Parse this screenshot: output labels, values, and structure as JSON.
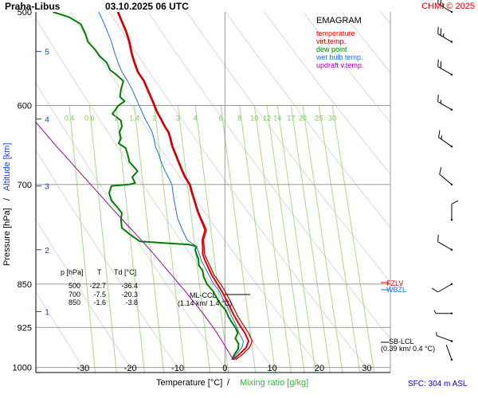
{
  "header": {
    "station": "Praha-Libus",
    "datetime": "03.10.2025 06 UTC",
    "copyright": "CHMI © 2025"
  },
  "chart_data": {
    "type": "line",
    "title": "EMAGRAM",
    "xlabel_temp": "Temperature [°C]",
    "xlabel_sep": "/",
    "xlabel_mix": "Mixing ratio [g/kg]",
    "ylabel_p": "Pressure [hPa]",
    "ylabel_sep": "/",
    "ylabel_alt": "Altitude [km]",
    "footer": "SFC: 304 m ASL",
    "xlim": [
      -40,
      35
    ],
    "ylim_hpa": [
      1010,
      500
    ],
    "pressure_ticks": [
      500,
      600,
      700,
      850,
      925,
      1000
    ],
    "temp_ticks": [
      -30,
      -20,
      -10,
      0,
      10,
      20,
      30
    ],
    "altitude_ticks": [
      {
        "label": "1",
        "p": 897
      },
      {
        "label": "2",
        "p": 795
      },
      {
        "label": "3",
        "p": 702
      },
      {
        "label": "4",
        "p": 616
      },
      {
        "label": "5",
        "p": 540
      }
    ],
    "mixing_ratio_labels": [
      "0.4",
      "0.6",
      "1",
      "1.4",
      "2",
      "3",
      "4",
      "6",
      "8",
      "10",
      "12",
      "14",
      "17",
      "20",
      "25",
      "30"
    ],
    "legend": [
      {
        "name": "temperature",
        "color": "#e60000"
      },
      {
        "name": "virt.temp.",
        "color": "#b30000"
      },
      {
        "name": "dew point",
        "color": "#008000"
      },
      {
        "name": "wet bulb temp.",
        "color": "#1f6fd6"
      },
      {
        "name": "updraft v.temp.",
        "color": "#9900aa"
      }
    ],
    "table": {
      "headers": [
        "p [hPa]",
        "T",
        "Td [°C]"
      ],
      "rows": [
        [
          "500",
          "-22.7",
          "-36.4"
        ],
        [
          "700",
          "-7.5",
          "-20.3"
        ],
        [
          "850",
          "-1.6",
          "-3.8"
        ]
      ]
    },
    "annotations": {
      "ml_ccl": "ML-CCL",
      "ml_ccl_sub": "(1.14 km/ 1.4 °C)",
      "sb_lcl": "SB-LCL",
      "sb_lcl_sub": "(0.39 km/ 0.4 °C)",
      "fzlv": "FZLV",
      "wbzl": "WBZL"
    },
    "series": [
      {
        "name": "temperature",
        "points": [
          [
            1.8,
            985
          ],
          [
            3.0,
            975
          ],
          [
            4.5,
            962
          ],
          [
            5.0,
            950
          ],
          [
            4.2,
            935
          ],
          [
            3.2,
            922
          ],
          [
            2.0,
            905
          ],
          [
            1.0,
            888
          ],
          [
            0.2,
            875
          ],
          [
            -0.8,
            860
          ],
          [
            -1.6,
            850
          ],
          [
            -2.8,
            835
          ],
          [
            -4.2,
            812
          ],
          [
            -4.7,
            802
          ],
          [
            -4.7,
            790
          ],
          [
            -4.8,
            780
          ],
          [
            -4.2,
            765
          ],
          [
            -4.8,
            755
          ],
          [
            -5.2,
            748
          ],
          [
            -5.8,
            738
          ],
          [
            -6.3,
            727
          ],
          [
            -7.0,
            712
          ],
          [
            -7.5,
            700
          ],
          [
            -8.5,
            690
          ],
          [
            -9.2,
            680
          ],
          [
            -10.0,
            668
          ],
          [
            -10.5,
            660
          ],
          [
            -11.2,
            650
          ],
          [
            -11.6,
            640
          ],
          [
            -12.0,
            632
          ],
          [
            -12.8,
            625
          ],
          [
            -13.5,
            617
          ],
          [
            -14.5,
            607
          ],
          [
            -15.2,
            597
          ],
          [
            -16.4,
            582
          ],
          [
            -17.2,
            572
          ],
          [
            -18.5,
            562
          ],
          [
            -19.2,
            552
          ],
          [
            -19.8,
            542
          ],
          [
            -20.3,
            530
          ],
          [
            -21.0,
            519
          ],
          [
            -22.0,
            508
          ],
          [
            -22.7,
            500
          ]
        ]
      },
      {
        "name": "virt.temp.",
        "points": [
          [
            2.3,
            985
          ],
          [
            3.7,
            975
          ],
          [
            5.2,
            962
          ],
          [
            5.8,
            950
          ],
          [
            5.0,
            935
          ],
          [
            4.0,
            922
          ],
          [
            2.7,
            905
          ],
          [
            1.7,
            888
          ],
          [
            0.9,
            875
          ],
          [
            -0.1,
            860
          ],
          [
            -0.9,
            850
          ],
          [
            -2.3,
            835
          ],
          [
            -3.7,
            812
          ],
          [
            -4.3,
            802
          ],
          [
            -4.4,
            790
          ],
          [
            -4.5,
            780
          ],
          [
            -3.9,
            765
          ],
          [
            -4.5,
            755
          ],
          [
            -5.0,
            748
          ],
          [
            -5.6,
            738
          ],
          [
            -6.1,
            727
          ],
          [
            -6.8,
            712
          ],
          [
            -7.3,
            700
          ],
          [
            -8.3,
            690
          ],
          [
            -9.0,
            680
          ],
          [
            -9.8,
            668
          ],
          [
            -10.3,
            660
          ],
          [
            -11.0,
            650
          ],
          [
            -11.4,
            640
          ],
          [
            -11.8,
            632
          ],
          [
            -12.6,
            625
          ],
          [
            -13.3,
            617
          ],
          [
            -14.3,
            607
          ],
          [
            -15.0,
            597
          ],
          [
            -16.2,
            582
          ],
          [
            -17.0,
            572
          ],
          [
            -18.3,
            562
          ],
          [
            -19.0,
            552
          ],
          [
            -19.6,
            542
          ],
          [
            -20.1,
            530
          ],
          [
            -20.8,
            519
          ],
          [
            -21.8,
            508
          ],
          [
            -22.5,
            500
          ]
        ]
      },
      {
        "name": "dew point",
        "points": [
          [
            1.5,
            985
          ],
          [
            2.0,
            975
          ],
          [
            2.8,
            965
          ],
          [
            2.9,
            955
          ],
          [
            2.2,
            945
          ],
          [
            2.7,
            935
          ],
          [
            2.2,
            925
          ],
          [
            1.4,
            915
          ],
          [
            0.7,
            905
          ],
          [
            0.2,
            895
          ],
          [
            -0.8,
            885
          ],
          [
            -1.6,
            875
          ],
          [
            -2.5,
            862
          ],
          [
            -3.8,
            850
          ],
          [
            -4.5,
            838
          ],
          [
            -4.7,
            828
          ],
          [
            -5.5,
            820
          ],
          [
            -5.6,
            810
          ],
          [
            -6.0,
            802
          ],
          [
            -6.3,
            795
          ],
          [
            -6.0,
            790
          ],
          [
            -7.5,
            787
          ],
          [
            -12.0,
            785
          ],
          [
            -16.0,
            783
          ],
          [
            -18.0,
            782
          ],
          [
            -20.0,
            772
          ],
          [
            -21.8,
            762
          ],
          [
            -22.0,
            750
          ],
          [
            -21.8,
            740
          ],
          [
            -23.0,
            730
          ],
          [
            -24.0,
            722
          ],
          [
            -24.5,
            712
          ],
          [
            -24.0,
            702
          ],
          [
            -20.3,
            700
          ],
          [
            -19.0,
            698
          ],
          [
            -19.6,
            690
          ],
          [
            -18.5,
            682
          ],
          [
            -19.3,
            676
          ],
          [
            -20.2,
            670
          ],
          [
            -20.5,
            662
          ],
          [
            -21.0,
            652
          ],
          [
            -22.5,
            646
          ],
          [
            -22.0,
            640
          ],
          [
            -22.3,
            632
          ],
          [
            -21.8,
            625
          ],
          [
            -22.0,
            618
          ],
          [
            -23.8,
            610
          ],
          [
            -22.5,
            600
          ],
          [
            -21.2,
            595
          ],
          [
            -22.2,
            590
          ],
          [
            -22.0,
            582
          ],
          [
            -21.5,
            572
          ],
          [
            -23.0,
            565
          ],
          [
            -24.3,
            560
          ],
          [
            -25.0,
            552
          ],
          [
            -26.5,
            545
          ],
          [
            -27.5,
            538
          ],
          [
            -29.0,
            530
          ],
          [
            -29.5,
            522
          ],
          [
            -30.5,
            512
          ],
          [
            -33.0,
            505
          ],
          [
            -36.4,
            500
          ]
        ]
      },
      {
        "name": "wet bulb temp.",
        "points": [
          [
            1.6,
            985
          ],
          [
            2.4,
            975
          ],
          [
            3.6,
            962
          ],
          [
            3.9,
            950
          ],
          [
            3.0,
            935
          ],
          [
            2.4,
            922
          ],
          [
            1.4,
            905
          ],
          [
            0.5,
            888
          ],
          [
            -0.4,
            875
          ],
          [
            -1.3,
            860
          ],
          [
            -2.4,
            850
          ],
          [
            -3.4,
            835
          ],
          [
            -5.0,
            812
          ],
          [
            -5.4,
            802
          ],
          [
            -6.0,
            790
          ],
          [
            -8.0,
            780
          ],
          [
            -9.0,
            765
          ],
          [
            -9.6,
            755
          ],
          [
            -10.0,
            748
          ],
          [
            -10.3,
            738
          ],
          [
            -10.6,
            727
          ],
          [
            -11.0,
            712
          ],
          [
            -11.2,
            700
          ],
          [
            -12.0,
            690
          ],
          [
            -12.8,
            680
          ],
          [
            -13.6,
            668
          ],
          [
            -14.0,
            660
          ],
          [
            -14.7,
            650
          ],
          [
            -15.0,
            640
          ],
          [
            -15.4,
            632
          ],
          [
            -16.0,
            625
          ],
          [
            -16.8,
            617
          ],
          [
            -17.6,
            607
          ],
          [
            -18.4,
            597
          ],
          [
            -19.6,
            582
          ],
          [
            -20.6,
            572
          ],
          [
            -21.8,
            562
          ],
          [
            -22.6,
            552
          ],
          [
            -23.3,
            542
          ],
          [
            -24.0,
            530
          ],
          [
            -24.9,
            519
          ],
          [
            -25.9,
            508
          ],
          [
            -26.7,
            500
          ]
        ]
      },
      {
        "name": "updraft v.temp.",
        "points": [
          [
            1.8,
            985
          ],
          [
            0.4,
            965
          ],
          [
            -0.6,
            950
          ],
          [
            -1.7,
            935
          ],
          [
            -2.9,
            920
          ],
          [
            -4.2,
            905
          ],
          [
            -5.6,
            890
          ],
          [
            -7.1,
            875
          ],
          [
            -8.6,
            860
          ],
          [
            -9.7,
            850
          ],
          [
            -11.3,
            835
          ],
          [
            -13.0,
            820
          ],
          [
            -15.0,
            802
          ],
          [
            -17.1,
            785
          ],
          [
            -19.0,
            770
          ],
          [
            -21.0,
            755
          ],
          [
            -23.0,
            740
          ],
          [
            -25.4,
            722
          ],
          [
            -28.4,
            700
          ],
          [
            -30.8,
            683
          ],
          [
            -33.2,
            666
          ],
          [
            -35.9,
            648
          ],
          [
            -38.5,
            630
          ],
          [
            -40,
            620
          ]
        ]
      }
    ],
    "wind_barbs": [
      {
        "p": 500,
        "dir": 300,
        "speed": 25
      },
      {
        "p": 530,
        "dir": 300,
        "speed": 25
      },
      {
        "p": 565,
        "dir": 300,
        "speed": 20
      },
      {
        "p": 605,
        "dir": 300,
        "speed": 15
      },
      {
        "p": 650,
        "dir": 305,
        "speed": 15
      },
      {
        "p": 700,
        "dir": 310,
        "speed": 10
      },
      {
        "p": 750,
        "dir": 0,
        "speed": 10
      },
      {
        "p": 795,
        "dir": 300,
        "speed": 10
      },
      {
        "p": 850,
        "dir": 240,
        "speed": 10
      },
      {
        "p": 900,
        "dir": 270,
        "speed": 5
      },
      {
        "p": 950,
        "dir": 290,
        "speed": 5
      },
      {
        "p": 985,
        "dir": 340,
        "speed": 3
      }
    ]
  }
}
